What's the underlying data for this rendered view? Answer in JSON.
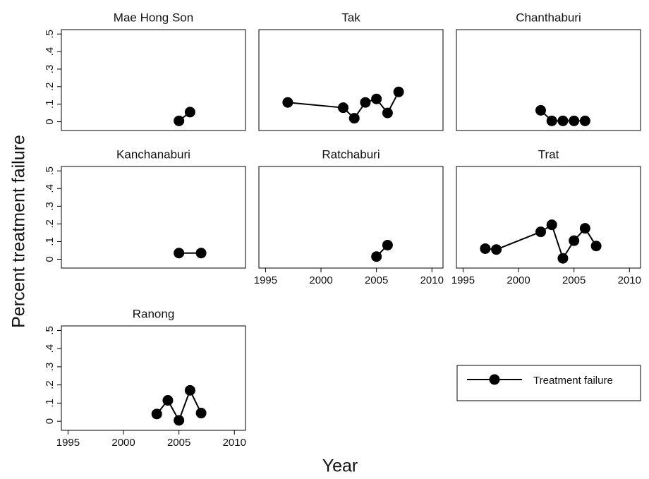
{
  "y_label": "Percent treatment failure",
  "x_label": "Year",
  "legend": "Treatment failure",
  "color": "#000000",
  "chart_data": [
    {
      "type": "line",
      "title": "Mae Hong Son",
      "x": [
        2005,
        2006
      ],
      "values": [
        0.005,
        0.055
      ],
      "xlim": [
        1994.4,
        2011
      ],
      "ylim": [
        -0.05,
        0.525
      ],
      "yticks": [
        0,
        {
          "value": 0.1,
          "label": ".1"
        },
        {
          "value": 0.2,
          "label": ".2"
        },
        {
          "value": 0.3,
          "label": ".3"
        },
        {
          "value": 0.4,
          "label": ".4"
        },
        {
          "value": 0.5,
          "label": ".5"
        }
      ]
    },
    {
      "type": "line",
      "title": "Tak",
      "x": [
        1997,
        2002,
        2003,
        2004,
        2005,
        2006,
        2007
      ],
      "values": [
        0.11,
        0.08,
        0.02,
        0.11,
        0.13,
        0.05,
        0.17
      ],
      "xlim": [
        1994.4,
        2011
      ],
      "ylim": [
        -0.05,
        0.525
      ]
    },
    {
      "type": "line",
      "title": "Chanthaburi",
      "x": [
        2002,
        2003,
        2004,
        2005,
        2006
      ],
      "values": [
        0.065,
        0.005,
        0.005,
        0.005,
        0.005
      ],
      "xlim": [
        1994.4,
        2011
      ],
      "ylim": [
        -0.05,
        0.525
      ]
    },
    {
      "type": "line",
      "title": "Kanchanaburi",
      "x": [
        2005,
        2007
      ],
      "values": [
        0.035,
        0.035
      ],
      "xlim": [
        1994.4,
        2011
      ],
      "ylim": [
        -0.05,
        0.525
      ],
      "yticks": [
        0,
        {
          "value": 0.1,
          "label": ".1"
        },
        {
          "value": 0.2,
          "label": ".2"
        },
        {
          "value": 0.3,
          "label": ".3"
        },
        {
          "value": 0.4,
          "label": ".4"
        },
        {
          "value": 0.5,
          "label": ".5"
        }
      ]
    },
    {
      "type": "line",
      "title": "Ratchaburi",
      "x": [
        2005,
        2006
      ],
      "values": [
        0.015,
        0.08
      ],
      "xlim": [
        1994.4,
        2011
      ],
      "ylim": [
        -0.05,
        0.525
      ],
      "xticks": [
        1995,
        2000,
        2005,
        2010
      ]
    },
    {
      "type": "line",
      "title": "Trat",
      "x": [
        1997,
        1998,
        2002,
        2003,
        2004,
        2005,
        2006,
        2007
      ],
      "values": [
        0.06,
        0.055,
        0.155,
        0.195,
        0.005,
        0.105,
        0.175,
        0.075
      ],
      "xlim": [
        1994.4,
        2011
      ],
      "ylim": [
        -0.05,
        0.525
      ],
      "xticks": [
        1995,
        2000,
        2005,
        2010
      ]
    },
    {
      "type": "line",
      "title": "Ranong",
      "x": [
        2003,
        2004,
        2005,
        2006,
        2007
      ],
      "values": [
        0.04,
        0.115,
        0.005,
        0.17,
        0.045
      ],
      "xlim": [
        1994.4,
        2011
      ],
      "ylim": [
        -0.05,
        0.525
      ],
      "xticks": [
        1995,
        2000,
        2005,
        2010
      ],
      "yticks": [
        0,
        {
          "value": 0.1,
          "label": ".1"
        },
        {
          "value": 0.2,
          "label": ".2"
        },
        {
          "value": 0.3,
          "label": ".3"
        },
        {
          "value": 0.4,
          "label": ".4"
        },
        {
          "value": 0.5,
          "label": ".5"
        }
      ]
    }
  ]
}
